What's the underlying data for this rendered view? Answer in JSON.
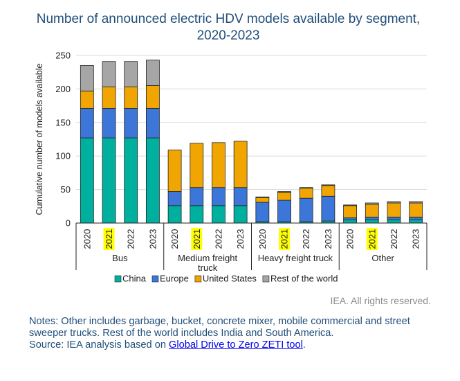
{
  "chart_data": {
    "type": "bar",
    "stacked": true,
    "title": "Number of announced electric HDV models available by segment, 2020-2023",
    "ylabel": "Cumulative number of models available",
    "xlabel": "",
    "ylim": [
      0,
      250
    ],
    "yticks": [
      0,
      50,
      100,
      150,
      200,
      250
    ],
    "grid": true,
    "legend_position": "bottom",
    "groups": [
      {
        "label": "Bus",
        "categories": [
          "2020",
          "2021",
          "2022",
          "2023"
        ]
      },
      {
        "label": "Medium freight truck",
        "categories": [
          "2020",
          "2021",
          "2022",
          "2023"
        ]
      },
      {
        "label": "Heavy freight truck",
        "categories": [
          "2020",
          "2021",
          "2022",
          "2023"
        ]
      },
      {
        "label": "Other",
        "categories": [
          "2020",
          "2021",
          "2022",
          "2023"
        ]
      }
    ],
    "highlighted_category": "2021",
    "series": [
      {
        "name": "China",
        "color": "#00b09e",
        "values": [
          127,
          127,
          127,
          127,
          26,
          26,
          26,
          26,
          2,
          2,
          2,
          3,
          5,
          5,
          5,
          5
        ]
      },
      {
        "name": "Europe",
        "color": "#3b76d8",
        "values": [
          44,
          44,
          44,
          44,
          21,
          27,
          27,
          27,
          29,
          32,
          35,
          37,
          3,
          4,
          4,
          4
        ]
      },
      {
        "name": "United States",
        "color": "#f0a500",
        "values": [
          26,
          32,
          32,
          34,
          62,
          66,
          67,
          69,
          7,
          12,
          15,
          16,
          18,
          19,
          21,
          21
        ]
      },
      {
        "name": "Rest of the world",
        "color": "#a6a6a6",
        "values": [
          38,
          38,
          38,
          38,
          0,
          0,
          0,
          0,
          1,
          1,
          1,
          1,
          1,
          2,
          2,
          2
        ]
      }
    ]
  },
  "copyright": "IEA. All rights reserved.",
  "notes": {
    "line1": "Notes: Other includes garbage, bucket, concrete mixer, mobile commercial and street sweeper trucks. Rest of the world includes India and South America.",
    "source_prefix": "Source: IEA analysis based on ",
    "source_link": "Global Drive to Zero ZETI tool",
    "source_suffix": "."
  }
}
